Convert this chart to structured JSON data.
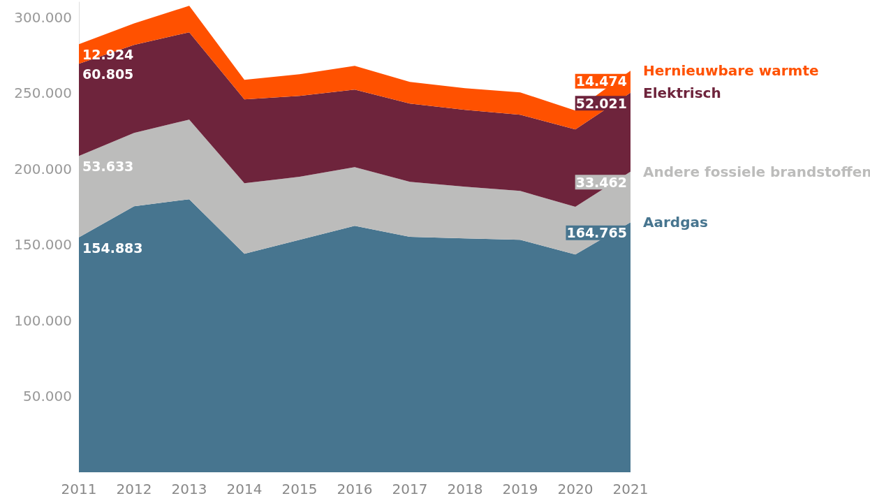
{
  "chart_data": {
    "type": "area",
    "stacked": true,
    "legend": false,
    "grid": false,
    "categories": [
      "2011",
      "2012",
      "2013",
      "2014",
      "2015",
      "2016",
      "2017",
      "2018",
      "2019",
      "2020",
      "2021"
    ],
    "ylim": [
      0,
      310000
    ],
    "yticks": [
      {
        "value": 0,
        "label": null
      },
      {
        "value": 50000,
        "label": "50.000"
      },
      {
        "value": 100000,
        "label": "100.000"
      },
      {
        "value": 150000,
        "label": "150.000"
      },
      {
        "value": 200000,
        "label": "200.000"
      },
      {
        "value": 250000,
        "label": "250.000"
      },
      {
        "value": 300000,
        "label": "300.000"
      }
    ],
    "series": [
      {
        "name": "Aardgas",
        "color": "#47758f",
        "values": [
          154883,
          175400,
          180000,
          144100,
          153300,
          162500,
          155200,
          154200,
          153300,
          143600,
          164765
        ],
        "value_labels": [
          "154.883",
          null,
          null,
          null,
          null,
          null,
          null,
          null,
          null,
          null,
          "164.765"
        ]
      },
      {
        "name": "Andere fossiele brandstoffen",
        "color": "#bcbcbb",
        "values": [
          53633,
          48400,
          52500,
          46500,
          41500,
          38700,
          36300,
          34100,
          32200,
          31400,
          33462
        ],
        "value_labels": [
          "53.633",
          null,
          null,
          null,
          null,
          null,
          null,
          null,
          null,
          null,
          "33.462"
        ]
      },
      {
        "name": "Elektrisch",
        "color": "#6e243c",
        "values": [
          60805,
          58000,
          57600,
          55300,
          53400,
          51100,
          51600,
          50700,
          50200,
          51000,
          52021
        ],
        "value_labels": [
          "60.805",
          null,
          null,
          null,
          null,
          null,
          null,
          null,
          null,
          null,
          "52.021"
        ]
      },
      {
        "name": "Hernieuwbare warmte",
        "color": "#ff5100",
        "values": [
          12924,
          14200,
          17500,
          12800,
          14200,
          15700,
          14300,
          14200,
          14800,
          12500,
          14474
        ],
        "value_labels": [
          "12.924",
          null,
          null,
          null,
          null,
          null,
          null,
          null,
          null,
          null,
          "14.474"
        ]
      }
    ]
  }
}
